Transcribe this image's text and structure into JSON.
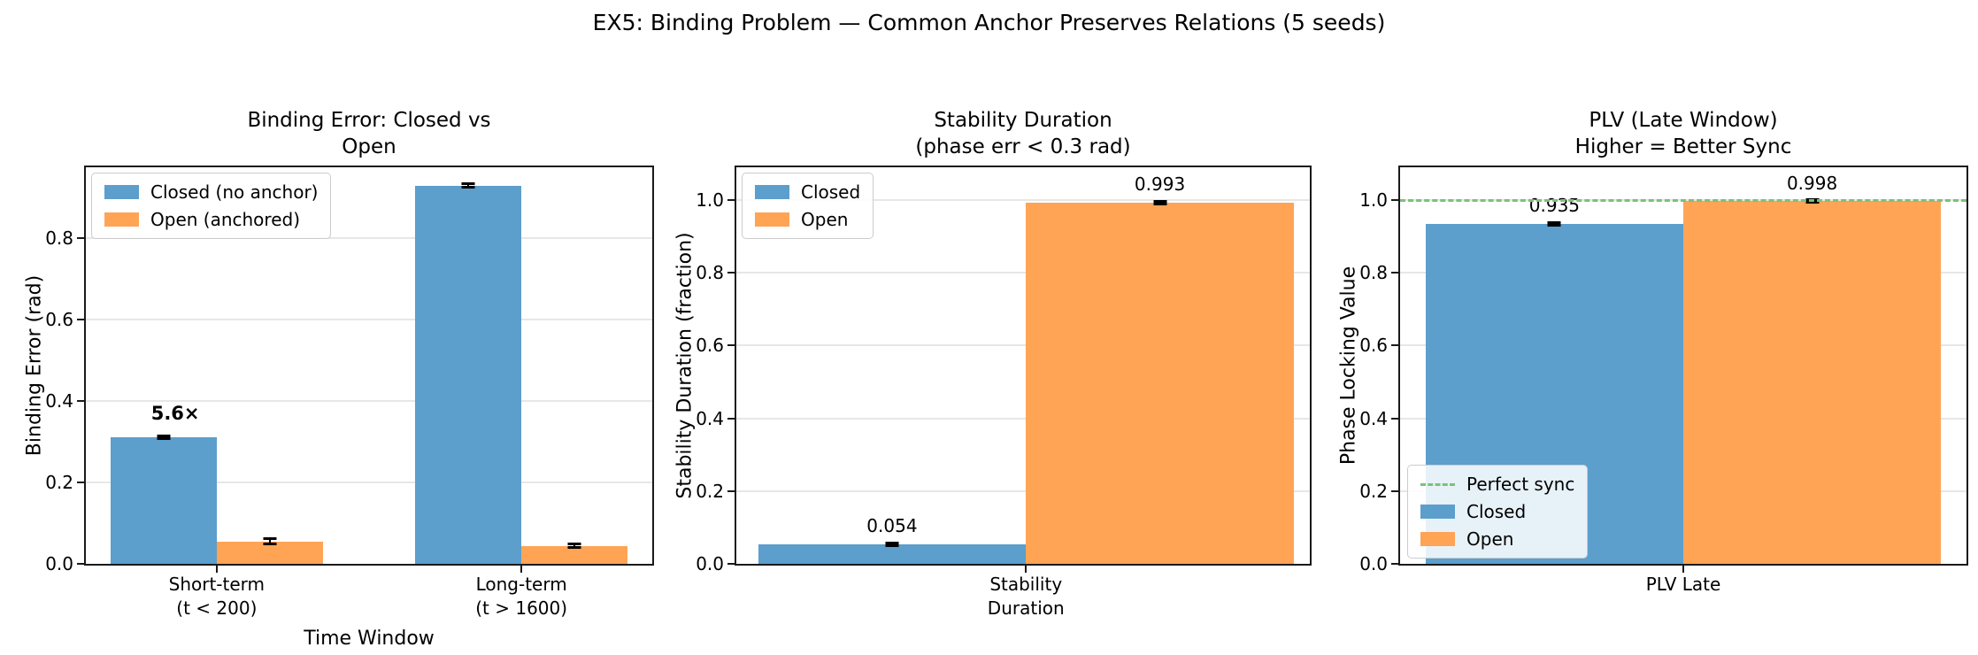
{
  "figure": {
    "suptitle": "EX5: Binding Problem — Common Anchor Preserves Relations (5 seeds)"
  },
  "colors": {
    "closed_bar": "#5C9ECC",
    "open_bar": "#FFA455",
    "perfect_sync_line": "#79C279",
    "gridline": "#E7E7E7",
    "spine": "#1A1A1A",
    "errorbar": "#000000",
    "legend_bg": "rgba(255,255,255,0.85)"
  },
  "chart_data": [
    {
      "type": "bar",
      "title": "Binding Error: Closed vs Open",
      "xlabel": "Time Window",
      "ylabel": "Binding Error (rad)",
      "categories": [
        "Short-term\n(t < 200)",
        "Long-term\n(t > 1600)"
      ],
      "series": [
        {
          "name": "Closed (no anchor)",
          "color_key": "closed_bar",
          "values": [
            0.311,
            0.93
          ],
          "errors": [
            0.004,
            0.004
          ]
        },
        {
          "name": "Open (anchored)",
          "color_key": "open_bar",
          "values": [
            0.055,
            0.044
          ],
          "errors": [
            0.007,
            0.004
          ]
        }
      ],
      "ylim": [
        0,
        0.975
      ],
      "yticks": [
        0,
        0.2,
        0.4,
        0.6,
        0.8
      ],
      "grid": true,
      "show_value_labels": false,
      "legend_position": "upper-left",
      "annotation": {
        "text": "5.6×",
        "x_frac": 0.158,
        "y_value": 0.37
      }
    },
    {
      "type": "bar",
      "title": "Stability Duration\n(phase err < 0.3 rad)",
      "xlabel": "",
      "ylabel": "Stability Duration (fraction)",
      "categories": [
        "Stability\nDuration"
      ],
      "series": [
        {
          "name": "Closed",
          "color_key": "closed_bar",
          "values": [
            0.054
          ],
          "errors": [
            0.004
          ]
        },
        {
          "name": "Open",
          "color_key": "open_bar",
          "values": [
            0.993
          ],
          "errors": [
            0.004
          ]
        }
      ],
      "ylim": [
        0,
        1.09
      ],
      "yticks": [
        0,
        0.2,
        0.4,
        0.6,
        0.8,
        1.0
      ],
      "grid": true,
      "show_value_labels": true,
      "legend_position": "upper-left"
    },
    {
      "type": "bar",
      "title": "PLV (Late Window)\nHigher = Better Sync",
      "xlabel": "",
      "ylabel": "Phase Locking Value",
      "categories": [
        "PLV Late"
      ],
      "series": [
        {
          "name": "Closed",
          "color_key": "closed_bar",
          "values": [
            0.935
          ],
          "errors": [
            0.004
          ]
        },
        {
          "name": "Open",
          "color_key": "open_bar",
          "values": [
            0.998
          ],
          "errors": [
            0.003
          ]
        }
      ],
      "ylim": [
        0,
        1.09
      ],
      "yticks": [
        0,
        0.2,
        0.4,
        0.6,
        0.8,
        1.0
      ],
      "grid": true,
      "show_value_labels": true,
      "legend_position": "lower-left",
      "hline": {
        "y": 1.0,
        "label": "Perfect sync",
        "color_key": "perfect_sync_line",
        "style": "dashed"
      }
    }
  ]
}
